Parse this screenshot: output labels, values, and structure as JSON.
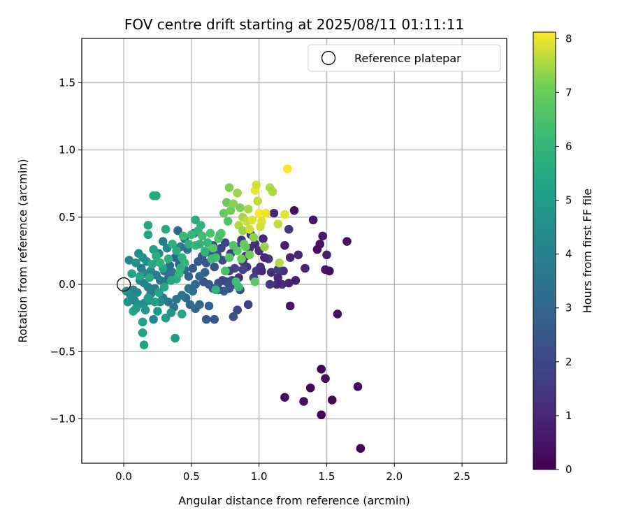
{
  "chart_data": {
    "type": "scatter",
    "title": "FOV centre drift starting at 2025/08/11 01:11:11",
    "xlabel": "Angular distance from reference (arcmin)",
    "ylabel": "Rotation from reference (arcmin)",
    "xlim": [
      -0.31,
      2.83
    ],
    "ylim": [
      -1.33,
      1.83
    ],
    "xticks": [
      "0.0",
      "0.5",
      "1.0",
      "1.5",
      "2.0",
      "2.5"
    ],
    "xtick_values": [
      0.0,
      0.5,
      1.0,
      1.5,
      2.0,
      2.5
    ],
    "yticks": [
      "−1.0",
      "−0.5",
      "0.0",
      "0.5",
      "1.0",
      "1.5"
    ],
    "ytick_values": [
      -1.0,
      -0.5,
      0.0,
      0.5,
      1.0,
      1.5
    ],
    "grid": true,
    "legend": {
      "position": "top-right",
      "entries": [
        "Reference platepar"
      ]
    },
    "reference_point": {
      "x": 0.0,
      "y": 0.0,
      "marker": "open-circle"
    },
    "colorbar": {
      "label": "Hours from first FF file",
      "colormap": "viridis",
      "range": [
        0,
        8.12
      ],
      "ticks": [
        "0",
        "1",
        "2",
        "3",
        "4",
        "5",
        "6",
        "7",
        "8"
      ],
      "tick_values": [
        0,
        1,
        2,
        3,
        4,
        5,
        6,
        7,
        8
      ]
    },
    "points": [
      {
        "x": 1.75,
        "y": -1.22,
        "c": 0.1
      },
      {
        "x": 1.46,
        "y": -0.97,
        "c": 0.2
      },
      {
        "x": 1.73,
        "y": -0.76,
        "c": 0.3
      },
      {
        "x": 1.54,
        "y": -0.86,
        "c": 0.2
      },
      {
        "x": 1.33,
        "y": -0.87,
        "c": 0.4
      },
      {
        "x": 1.19,
        "y": -0.84,
        "c": 0.3
      },
      {
        "x": 1.38,
        "y": -0.77,
        "c": 0.2
      },
      {
        "x": 1.46,
        "y": -0.63,
        "c": 0.1
      },
      {
        "x": 1.49,
        "y": -0.7,
        "c": 0.3
      },
      {
        "x": 1.58,
        "y": -0.22,
        "c": 0.4
      },
      {
        "x": 1.23,
        "y": -0.16,
        "c": 0.6
      },
      {
        "x": 1.65,
        "y": 0.32,
        "c": 0.5
      },
      {
        "x": 1.26,
        "y": 0.55,
        "c": 0.4
      },
      {
        "x": 1.4,
        "y": 0.48,
        "c": 0.6
      },
      {
        "x": 1.47,
        "y": 0.36,
        "c": 0.7
      },
      {
        "x": 1.45,
        "y": 0.3,
        "c": 0.5
      },
      {
        "x": 1.43,
        "y": 0.26,
        "c": 0.3
      },
      {
        "x": 1.5,
        "y": 0.22,
        "c": 0.8
      },
      {
        "x": 1.34,
        "y": 0.12,
        "c": 0.9
      },
      {
        "x": 1.49,
        "y": 0.11,
        "c": 0.6
      },
      {
        "x": 1.52,
        "y": 0.1,
        "c": 0.4
      },
      {
        "x": 1.27,
        "y": 0.03,
        "c": 0.8
      },
      {
        "x": 1.22,
        "y": 0.01,
        "c": 1.0
      },
      {
        "x": 1.19,
        "y": 0.29,
        "c": 0.7
      },
      {
        "x": 1.29,
        "y": 0.22,
        "c": 1.0
      },
      {
        "x": 1.23,
        "y": 0.2,
        "c": 0.9
      },
      {
        "x": 1.18,
        "y": 0.1,
        "c": 1.2
      },
      {
        "x": 1.14,
        "y": 0.05,
        "c": 1.1
      },
      {
        "x": 1.17,
        "y": 0.0,
        "c": 1.3
      },
      {
        "x": 1.13,
        "y": 0.0,
        "c": 0.9
      },
      {
        "x": 1.09,
        "y": 0.09,
        "c": 1.2
      },
      {
        "x": 1.07,
        "y": 0.19,
        "c": 1.4
      },
      {
        "x": 1.04,
        "y": 0.2,
        "c": 1.0
      },
      {
        "x": 1.01,
        "y": 0.13,
        "c": 1.3
      },
      {
        "x": 0.98,
        "y": 0.1,
        "c": 1.5
      },
      {
        "x": 1.02,
        "y": 0.1,
        "c": 1.1
      },
      {
        "x": 1.22,
        "y": 0.41,
        "c": 1.4
      },
      {
        "x": 1.11,
        "y": 0.53,
        "c": 1.1
      },
      {
        "x": 1.14,
        "y": 0.11,
        "c": 1.6
      },
      {
        "x": 1.08,
        "y": 0.0,
        "c": 1.5
      },
      {
        "x": 0.96,
        "y": 0.05,
        "c": 1.8
      },
      {
        "x": 0.93,
        "y": 0.27,
        "c": 1.4
      },
      {
        "x": 0.88,
        "y": 0.17,
        "c": 1.7
      },
      {
        "x": 0.91,
        "y": 0.13,
        "c": 1.6
      },
      {
        "x": 0.88,
        "y": 0.11,
        "c": 1.9
      },
      {
        "x": 0.85,
        "y": 0.05,
        "c": 1.3
      },
      {
        "x": 0.82,
        "y": 0.12,
        "c": 2.0
      },
      {
        "x": 0.78,
        "y": 0.1,
        "c": 1.8
      },
      {
        "x": 0.8,
        "y": 0.03,
        "c": 2.1
      },
      {
        "x": 0.76,
        "y": 0.02,
        "c": 2.2
      },
      {
        "x": 0.73,
        "y": 0.03,
        "c": 1.9
      },
      {
        "x": 0.7,
        "y": 0.01,
        "c": 2.3
      },
      {
        "x": 0.81,
        "y": 0.0,
        "c": 2.1
      },
      {
        "x": 0.78,
        "y": -0.03,
        "c": 2.4
      },
      {
        "x": 0.74,
        "y": -0.05,
        "c": 2.6
      },
      {
        "x": 0.7,
        "y": -0.04,
        "c": 2.2
      },
      {
        "x": 0.66,
        "y": -0.03,
        "c": 2.5
      },
      {
        "x": 0.63,
        "y": 0.0,
        "c": 2.7
      },
      {
        "x": 0.59,
        "y": 0.02,
        "c": 2.3
      },
      {
        "x": 0.86,
        "y": -0.04,
        "c": 2.0
      },
      {
        "x": 0.92,
        "y": -0.15,
        "c": 1.8
      },
      {
        "x": 0.84,
        "y": -0.19,
        "c": 2.0
      },
      {
        "x": 0.81,
        "y": -0.24,
        "c": 2.3
      },
      {
        "x": 0.67,
        "y": -0.26,
        "c": 2.5
      },
      {
        "x": 0.61,
        "y": -0.26,
        "c": 2.7
      },
      {
        "x": 0.63,
        "y": -0.16,
        "c": 2.8
      },
      {
        "x": 0.56,
        "y": -0.15,
        "c": 2.9
      },
      {
        "x": 0.53,
        "y": -0.18,
        "c": 3.1
      },
      {
        "x": 0.49,
        "y": -0.15,
        "c": 3.0
      },
      {
        "x": 0.46,
        "y": -0.1,
        "c": 3.2
      },
      {
        "x": 0.51,
        "y": -0.05,
        "c": 3.4
      },
      {
        "x": 0.48,
        "y": -0.03,
        "c": 3.3
      },
      {
        "x": 0.43,
        "y": -0.08,
        "c": 3.5
      },
      {
        "x": 0.39,
        "y": -0.11,
        "c": 3.6
      },
      {
        "x": 0.37,
        "y": -0.17,
        "c": 3.4
      },
      {
        "x": 0.33,
        "y": -0.13,
        "c": 3.7
      },
      {
        "x": 0.29,
        "y": -0.1,
        "c": 3.8
      },
      {
        "x": 0.26,
        "y": -0.06,
        "c": 3.9
      },
      {
        "x": 0.23,
        "y": -0.03,
        "c": 4.0
      },
      {
        "x": 0.2,
        "y": -0.07,
        "c": 3.8
      },
      {
        "x": 0.18,
        "y": -0.02,
        "c": 4.1
      },
      {
        "x": 0.15,
        "y": 0.01,
        "c": 4.2
      },
      {
        "x": 0.12,
        "y": 0.03,
        "c": 4.0
      },
      {
        "x": 0.1,
        "y": -0.06,
        "c": 4.3
      },
      {
        "x": 0.07,
        "y": -0.04,
        "c": 4.1
      },
      {
        "x": 0.05,
        "y": -0.08,
        "c": 4.4
      },
      {
        "x": 0.02,
        "y": -0.05,
        "c": 4.5
      },
      {
        "x": 0.03,
        "y": -0.13,
        "c": 4.6
      },
      {
        "x": 0.08,
        "y": -0.12,
        "c": 4.3
      },
      {
        "x": 0.11,
        "y": -0.15,
        "c": 4.7
      },
      {
        "x": 0.15,
        "y": -0.14,
        "c": 4.5
      },
      {
        "x": 0.16,
        "y": -0.19,
        "c": 4.8
      },
      {
        "x": 0.19,
        "y": -0.12,
        "c": 4.6
      },
      {
        "x": 0.22,
        "y": -0.26,
        "c": 4.2
      },
      {
        "x": 0.25,
        "y": -0.2,
        "c": 4.9
      },
      {
        "x": 0.31,
        "y": -0.25,
        "c": 5.0
      },
      {
        "x": 0.35,
        "y": -0.21,
        "c": 4.7
      },
      {
        "x": 0.27,
        "y": -0.13,
        "c": 4.4
      },
      {
        "x": 0.14,
        "y": -0.28,
        "c": 5.1
      },
      {
        "x": 0.14,
        "y": -0.36,
        "c": 5.2
      },
      {
        "x": 0.15,
        "y": -0.45,
        "c": 5.3
      },
      {
        "x": 0.38,
        "y": -0.4,
        "c": 5.0
      },
      {
        "x": 0.43,
        "y": -0.22,
        "c": 5.4
      },
      {
        "x": 0.07,
        "y": -0.2,
        "c": 5.5
      },
      {
        "x": 0.04,
        "y": 0.18,
        "c": 4.2
      },
      {
        "x": 0.09,
        "y": 0.16,
        "c": 4.6
      },
      {
        "x": 0.11,
        "y": 0.23,
        "c": 4.4
      },
      {
        "x": 0.14,
        "y": 0.2,
        "c": 4.8
      },
      {
        "x": 0.17,
        "y": 0.17,
        "c": 4.5
      },
      {
        "x": 0.13,
        "y": 0.12,
        "c": 4.0
      },
      {
        "x": 0.16,
        "y": 0.08,
        "c": 4.3
      },
      {
        "x": 0.2,
        "y": 0.1,
        "c": 4.1
      },
      {
        "x": 0.24,
        "y": 0.07,
        "c": 3.9
      },
      {
        "x": 0.27,
        "y": 0.03,
        "c": 3.7
      },
      {
        "x": 0.3,
        "y": 0.02,
        "c": 3.5
      },
      {
        "x": 0.33,
        "y": 0.05,
        "c": 3.3
      },
      {
        "x": 0.36,
        "y": 0.09,
        "c": 3.6
      },
      {
        "x": 0.3,
        "y": 0.1,
        "c": 3.4
      },
      {
        "x": 0.34,
        "y": 0.14,
        "c": 3.2
      },
      {
        "x": 0.38,
        "y": 0.2,
        "c": 3.0
      },
      {
        "x": 0.41,
        "y": 0.15,
        "c": 2.9
      },
      {
        "x": 0.45,
        "y": 0.11,
        "c": 3.1
      },
      {
        "x": 0.48,
        "y": 0.06,
        "c": 2.8
      },
      {
        "x": 0.51,
        "y": 0.12,
        "c": 2.7
      },
      {
        "x": 0.55,
        "y": 0.17,
        "c": 2.6
      },
      {
        "x": 0.58,
        "y": 0.21,
        "c": 2.4
      },
      {
        "x": 0.61,
        "y": 0.16,
        "c": 2.5
      },
      {
        "x": 0.63,
        "y": 0.24,
        "c": 2.3
      },
      {
        "x": 0.66,
        "y": 0.29,
        "c": 2.2
      },
      {
        "x": 0.69,
        "y": 0.22,
        "c": 2.1
      },
      {
        "x": 0.72,
        "y": 0.27,
        "c": 2.0
      },
      {
        "x": 0.75,
        "y": 0.31,
        "c": 1.9
      },
      {
        "x": 0.79,
        "y": 0.23,
        "c": 1.8
      },
      {
        "x": 0.83,
        "y": 0.28,
        "c": 1.7
      },
      {
        "x": 0.87,
        "y": 0.33,
        "c": 1.6
      },
      {
        "x": 0.9,
        "y": 0.21,
        "c": 1.5
      },
      {
        "x": 0.94,
        "y": 0.37,
        "c": 1.4
      },
      {
        "x": 0.97,
        "y": 0.3,
        "c": 1.3
      },
      {
        "x": 1.0,
        "y": 0.25,
        "c": 1.2
      },
      {
        "x": 1.03,
        "y": 0.34,
        "c": 1.1
      },
      {
        "x": 0.6,
        "y": 0.09,
        "c": 2.8
      },
      {
        "x": 0.56,
        "y": 0.06,
        "c": 3.0
      },
      {
        "x": 0.53,
        "y": 0.0,
        "c": 3.2
      },
      {
        "x": 0.67,
        "y": 0.13,
        "c": 2.4
      },
      {
        "x": 0.73,
        "y": 0.18,
        "c": 2.1
      },
      {
        "x": 0.4,
        "y": 0.4,
        "c": 2.9
      },
      {
        "x": 0.45,
        "y": 0.34,
        "c": 3.3
      },
      {
        "x": 0.52,
        "y": 0.38,
        "c": 3.6
      },
      {
        "x": 0.47,
        "y": 0.26,
        "c": 3.4
      },
      {
        "x": 0.42,
        "y": 0.28,
        "c": 3.7
      },
      {
        "x": 0.29,
        "y": 0.32,
        "c": 3.9
      },
      {
        "x": 0.32,
        "y": 0.27,
        "c": 4.1
      },
      {
        "x": 0.26,
        "y": 0.23,
        "c": 4.3
      },
      {
        "x": 0.22,
        "y": 0.26,
        "c": 5.1
      },
      {
        "x": 0.18,
        "y": 0.37,
        "c": 5.3
      },
      {
        "x": 0.18,
        "y": 0.44,
        "c": 5.4
      },
      {
        "x": 0.31,
        "y": 0.41,
        "c": 5.5
      },
      {
        "x": 0.22,
        "y": 0.66,
        "c": 5.6
      },
      {
        "x": 0.24,
        "y": 0.66,
        "c": 5.5
      },
      {
        "x": 0.25,
        "y": 0.17,
        "c": 5.0
      },
      {
        "x": 0.29,
        "y": 0.12,
        "c": 5.2
      },
      {
        "x": 0.33,
        "y": 0.19,
        "c": 5.7
      },
      {
        "x": 0.36,
        "y": 0.3,
        "c": 5.8
      },
      {
        "x": 0.39,
        "y": 0.25,
        "c": 5.6
      },
      {
        "x": 0.43,
        "y": 0.2,
        "c": 5.9
      },
      {
        "x": 0.45,
        "y": 0.16,
        "c": 6.0
      },
      {
        "x": 0.48,
        "y": 0.3,
        "c": 5.8
      },
      {
        "x": 0.5,
        "y": 0.37,
        "c": 6.1
      },
      {
        "x": 0.53,
        "y": 0.29,
        "c": 6.2
      },
      {
        "x": 0.55,
        "y": 0.4,
        "c": 5.9
      },
      {
        "x": 0.53,
        "y": 0.48,
        "c": 5.7
      },
      {
        "x": 0.57,
        "y": 0.44,
        "c": 6.0
      },
      {
        "x": 0.58,
        "y": 0.36,
        "c": 6.3
      },
      {
        "x": 0.6,
        "y": 0.25,
        "c": 6.4
      },
      {
        "x": 0.62,
        "y": 0.31,
        "c": 6.1
      },
      {
        "x": 0.64,
        "y": 0.38,
        "c": 6.5
      },
      {
        "x": 0.66,
        "y": 0.27,
        "c": 6.6
      },
      {
        "x": 0.68,
        "y": 0.2,
        "c": 6.4
      },
      {
        "x": 0.7,
        "y": 0.34,
        "c": 6.7
      },
      {
        "x": 0.72,
        "y": 0.38,
        "c": 6.8
      },
      {
        "x": 0.74,
        "y": 0.53,
        "c": 6.9
      },
      {
        "x": 0.76,
        "y": 0.61,
        "c": 7.0
      },
      {
        "x": 0.78,
        "y": 0.72,
        "c": 7.2
      },
      {
        "x": 0.79,
        "y": 0.55,
        "c": 7.1
      },
      {
        "x": 0.81,
        "y": 0.6,
        "c": 7.3
      },
      {
        "x": 0.84,
        "y": 0.68,
        "c": 7.4
      },
      {
        "x": 0.86,
        "y": 0.57,
        "c": 7.2
      },
      {
        "x": 0.88,
        "y": 0.5,
        "c": 7.5
      },
      {
        "x": 0.85,
        "y": 0.44,
        "c": 7.6
      },
      {
        "x": 0.88,
        "y": 0.4,
        "c": 7.4
      },
      {
        "x": 0.91,
        "y": 0.47,
        "c": 7.7
      },
      {
        "x": 0.93,
        "y": 0.41,
        "c": 7.8
      },
      {
        "x": 0.95,
        "y": 0.48,
        "c": 7.9
      },
      {
        "x": 0.97,
        "y": 0.7,
        "c": 8.0
      },
      {
        "x": 0.98,
        "y": 0.74,
        "c": 7.8
      },
      {
        "x": 1.0,
        "y": 0.53,
        "c": 8.1
      },
      {
        "x": 1.02,
        "y": 0.47,
        "c": 7.9
      },
      {
        "x": 1.05,
        "y": 0.53,
        "c": 8.0
      },
      {
        "x": 1.08,
        "y": 0.72,
        "c": 7.6
      },
      {
        "x": 1.1,
        "y": 0.69,
        "c": 7.5
      },
      {
        "x": 1.14,
        "y": 0.45,
        "c": 7.7
      },
      {
        "x": 1.19,
        "y": 0.52,
        "c": 7.9
      },
      {
        "x": 1.21,
        "y": 0.86,
        "c": 8.1
      },
      {
        "x": 1.15,
        "y": 0.16,
        "c": 7.6
      },
      {
        "x": 0.96,
        "y": 0.35,
        "c": 7.3
      },
      {
        "x": 0.93,
        "y": 0.22,
        "c": 7.1
      },
      {
        "x": 0.9,
        "y": 0.28,
        "c": 6.9
      },
      {
        "x": 0.87,
        "y": 0.19,
        "c": 7.0
      },
      {
        "x": 0.84,
        "y": 0.25,
        "c": 6.8
      },
      {
        "x": 0.81,
        "y": 0.29,
        "c": 6.6
      },
      {
        "x": 0.78,
        "y": 0.2,
        "c": 6.7
      },
      {
        "x": 0.75,
        "y": 0.1,
        "c": 6.5
      },
      {
        "x": 0.83,
        "y": 0.02,
        "c": 6.3
      },
      {
        "x": 0.85,
        "y": -0.02,
        "c": 6.2
      },
      {
        "x": 0.97,
        "y": 0.02,
        "c": 6.8
      },
      {
        "x": 0.68,
        "y": -0.04,
        "c": 6.0
      },
      {
        "x": 0.6,
        "y": 0.24,
        "c": 5.9
      },
      {
        "x": 0.42,
        "y": 0.12,
        "c": 5.8
      },
      {
        "x": 0.39,
        "y": 0.04,
        "c": 5.6
      },
      {
        "x": 0.35,
        "y": 0.03,
        "c": 5.5
      },
      {
        "x": 0.3,
        "y": -0.02,
        "c": 5.4
      },
      {
        "x": 0.26,
        "y": -0.06,
        "c": 5.3
      },
      {
        "x": 0.23,
        "y": -0.13,
        "c": 5.2
      },
      {
        "x": 0.18,
        "y": -0.1,
        "c": 5.1
      },
      {
        "x": 0.09,
        "y": -0.18,
        "c": 5.0
      },
      {
        "x": 0.06,
        "y": 0.08,
        "c": 5.3
      },
      {
        "x": 0.12,
        "y": 0.06,
        "c": 5.4
      },
      {
        "x": 0.19,
        "y": 0.05,
        "c": 5.6
      },
      {
        "x": 0.21,
        "y": 0.15,
        "c": 5.5
      },
      {
        "x": 0.24,
        "y": 0.21,
        "c": 5.7
      },
      {
        "x": 0.27,
        "y": 0.16,
        "c": 5.9
      },
      {
        "x": 0.44,
        "y": 0.36,
        "c": 6.2
      },
      {
        "x": 0.41,
        "y": 0.08,
        "c": 6.1
      },
      {
        "x": 0.56,
        "y": 0.3,
        "c": 5.9
      },
      {
        "x": 0.65,
        "y": 0.19,
        "c": 6.3
      },
      {
        "x": 0.71,
        "y": 0.37,
        "c": 6.5
      },
      {
        "x": 0.77,
        "y": 0.47,
        "c": 6.6
      },
      {
        "x": 0.89,
        "y": 0.3,
        "c": 7.0
      },
      {
        "x": 0.92,
        "y": 0.56,
        "c": 7.5
      },
      {
        "x": 1.01,
        "y": 0.43,
        "c": 7.8
      },
      {
        "x": 1.04,
        "y": 0.28,
        "c": 7.4
      },
      {
        "x": 0.99,
        "y": 0.62,
        "c": 7.7
      }
    ]
  }
}
